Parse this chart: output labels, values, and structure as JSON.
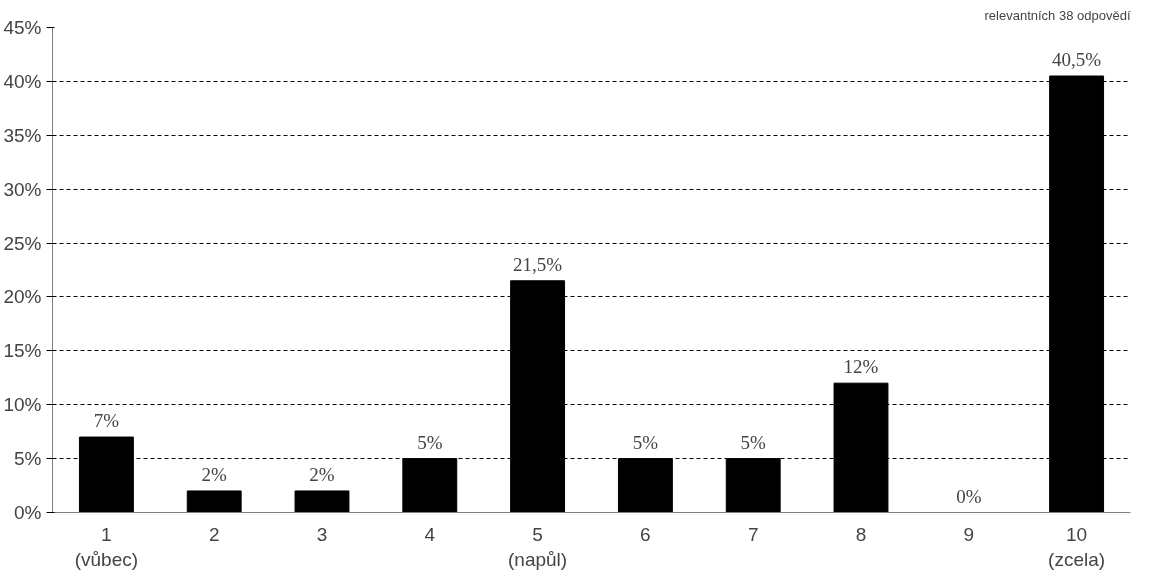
{
  "chart_data": {
    "type": "bar",
    "categories": [
      "1\n(vůbec)",
      "2",
      "3",
      "4",
      "5\n(napůl)",
      "6",
      "7",
      "8",
      "9",
      "10\n(zcela)"
    ],
    "values": [
      7,
      2,
      2,
      5,
      21.5,
      5,
      5,
      12,
      0,
      40.5
    ],
    "value_labels": [
      "7%",
      "2%",
      "2%",
      "5%",
      "21,5%",
      "5%",
      "5%",
      "12%",
      "0%",
      "40,5%"
    ],
    "color": "#000000",
    "ylim": [
      0,
      45
    ],
    "yticks": [
      {
        "value": 0,
        "label": "0%"
      },
      {
        "value": 5,
        "label": "5%"
      },
      {
        "value": 10,
        "label": "10%"
      },
      {
        "value": 15,
        "label": "15%"
      },
      {
        "value": 20,
        "label": "20%"
      },
      {
        "value": 25,
        "label": "25%"
      },
      {
        "value": 30,
        "label": "30%"
      },
      {
        "value": 35,
        "label": "35%"
      },
      {
        "value": 40,
        "label": "40%"
      },
      {
        "value": 45,
        "label": "45%"
      }
    ],
    "grid": "y",
    "annotations": [
      "relevantních 38 odpovědí"
    ]
  }
}
